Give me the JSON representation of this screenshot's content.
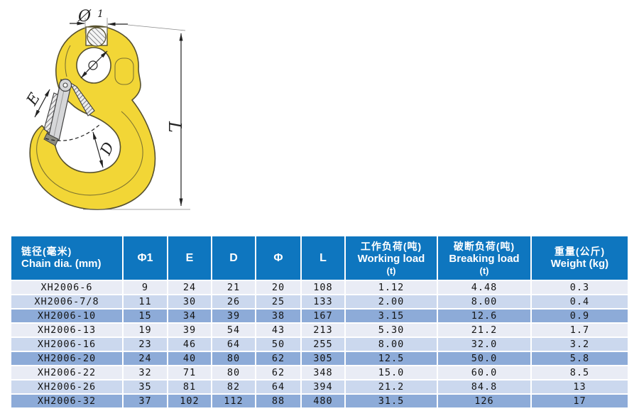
{
  "drawing": {
    "labels": {
      "dim_phi1": "Ø",
      "dim_phi1_sub": "1",
      "dim_e": "E",
      "dim_d": "D",
      "dim_l": "L"
    },
    "colors": {
      "hook_fill": "#f2d636",
      "hook_outline": "#57512e",
      "latch_fill": "#d6d7d9",
      "latch_outline": "#3f3f3f",
      "annotation": "#222222"
    }
  },
  "table": {
    "colors": {
      "header_bg": "#0e76bf",
      "header_text": "#ffffff",
      "row_light": "#e9ecf5",
      "row_medium": "#cbd8ee",
      "row_dark": "#8dabd8",
      "cell_text": "#141414"
    },
    "header": {
      "chain_cn": "链径(毫米)",
      "chain_en": "Chain dia. (mm)",
      "phi1": "Φ1",
      "e": "E",
      "d": "D",
      "phi": "Φ",
      "l": "L",
      "wll_cn": "工作负荷(吨)",
      "wll_en": "Working load",
      "wll_unit": "(t)",
      "bll_cn": "破断负荷(吨)",
      "bll_en": "Breaking load",
      "bll_unit": "(t)",
      "weight_cn": "重量(公斤)",
      "weight_en": "Weight (kg)"
    },
    "rows": [
      [
        "XH2006-6",
        "9",
        "24",
        "21",
        "20",
        "108",
        "1.12",
        "4.48",
        "0.3"
      ],
      [
        "XH2006-7/8",
        "11",
        "30",
        "26",
        "25",
        "133",
        "2.00",
        "8.00",
        "0.4"
      ],
      [
        "XH2006-10",
        "15",
        "34",
        "39",
        "38",
        "167",
        "3.15",
        "12.6",
        "0.9"
      ],
      [
        "XH2006-13",
        "19",
        "39",
        "54",
        "43",
        "213",
        "5.30",
        "21.2",
        "1.7"
      ],
      [
        "XH2006-16",
        "23",
        "46",
        "64",
        "50",
        "255",
        "8.00",
        "32.0",
        "3.2"
      ],
      [
        "XH2006-20",
        "24",
        "40",
        "80",
        "62",
        "305",
        "12.5",
        "50.0",
        "5.8"
      ],
      [
        "XH2006-22",
        "32",
        "71",
        "80",
        "62",
        "348",
        "15.0",
        "60.0",
        "8.5"
      ],
      [
        "XH2006-26",
        "35",
        "81",
        "82",
        "64",
        "394",
        "21.2",
        "84.8",
        "13"
      ],
      [
        "XH2006-32",
        "37",
        "102",
        "112",
        "88",
        "480",
        "31.5",
        "126",
        "17"
      ]
    ]
  }
}
